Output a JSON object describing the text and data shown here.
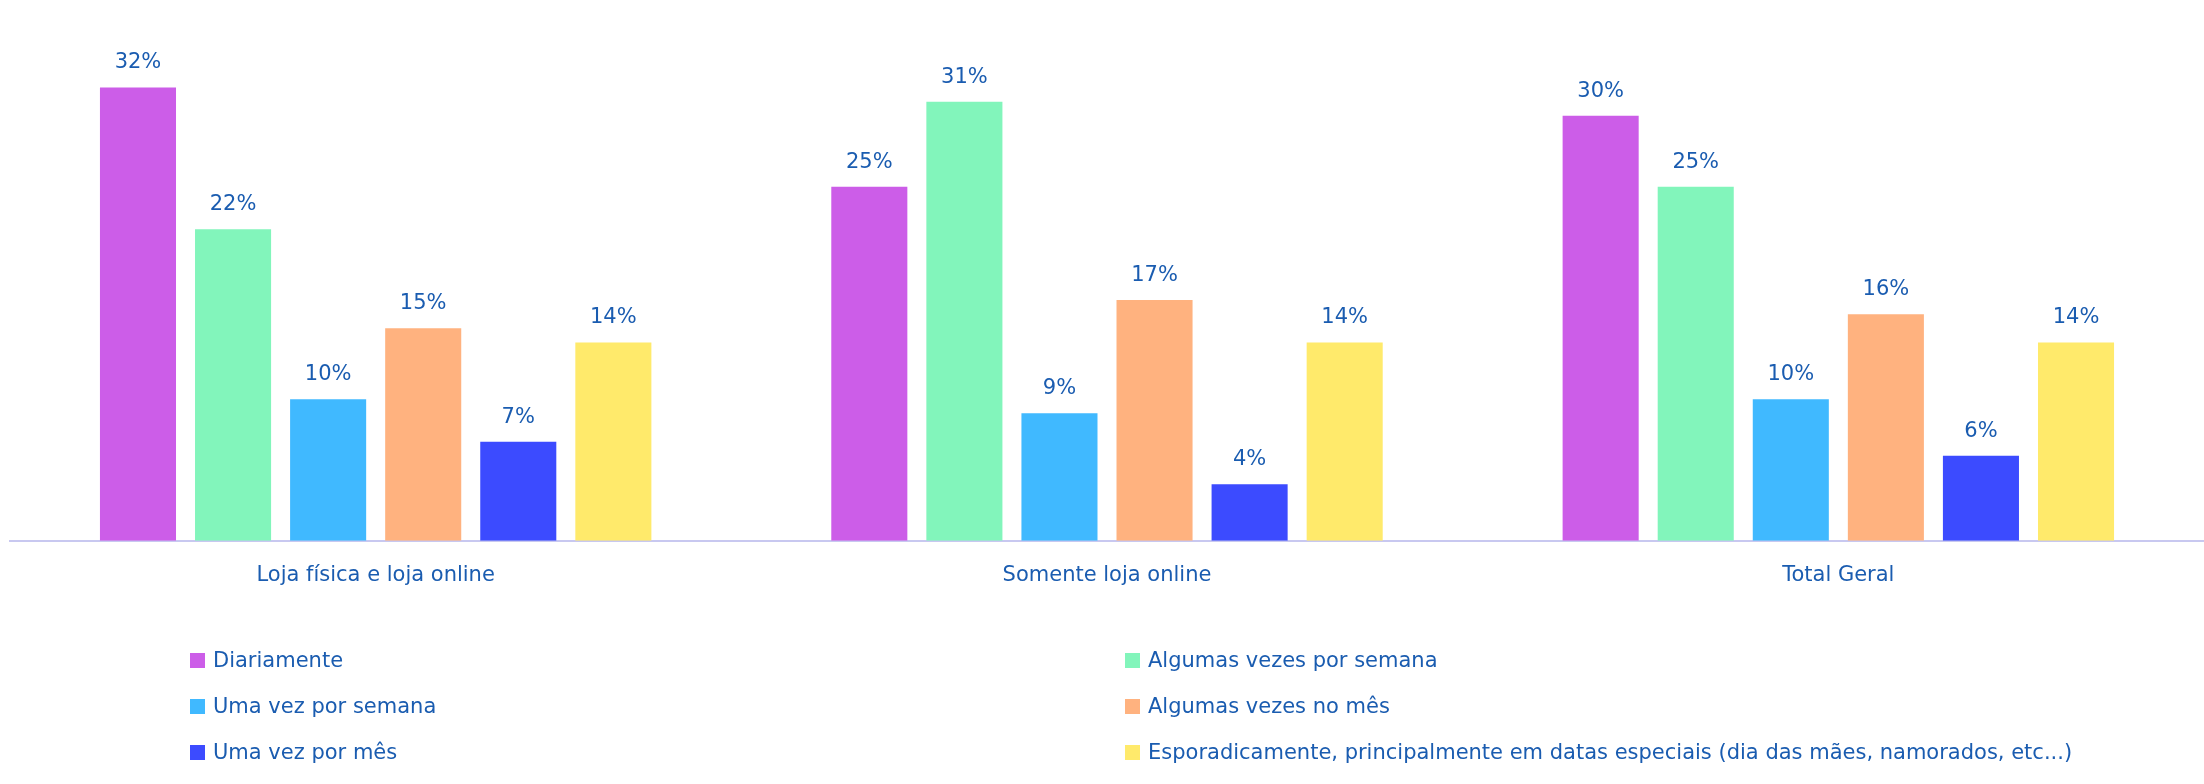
{
  "chart_data": {
    "type": "bar",
    "categories": [
      "Loja física e loja online",
      "Somente loja online",
      "Total Geral"
    ],
    "series": [
      {
        "name": "Diariamente",
        "color": "#cc5de8",
        "values": [
          32,
          25,
          30
        ],
        "value_labels": [
          "32%",
          "25%",
          "30%"
        ]
      },
      {
        "name": "Algumas vezes por semana",
        "color": "#82f5bb",
        "values": [
          22,
          31,
          25
        ],
        "value_labels": [
          "22%",
          "31%",
          "25%"
        ]
      },
      {
        "name": "Uma vez por semana",
        "color": "#40b9ff",
        "values": [
          10,
          9,
          10
        ],
        "value_labels": [
          "10%",
          "9%",
          "10%"
        ]
      },
      {
        "name": "Algumas vezes no mês",
        "color": "#ffb27f",
        "values": [
          15,
          17,
          16
        ],
        "value_labels": [
          "15%",
          "17%",
          "16%"
        ]
      },
      {
        "name": "Uma vez por mês",
        "color": "#3c4bff",
        "values": [
          7,
          4,
          6
        ],
        "value_labels": [
          "7%",
          "4%",
          "6%"
        ]
      },
      {
        "name": "Esporadicamente, principalmente em datas especiais (dia das mães, namorados, etc...)",
        "color": "#ffea6b",
        "values": [
          14,
          14,
          14
        ],
        "value_labels": [
          "14%",
          "14%",
          "14%"
        ]
      }
    ],
    "legend": "bottom",
    "grid": false
  }
}
